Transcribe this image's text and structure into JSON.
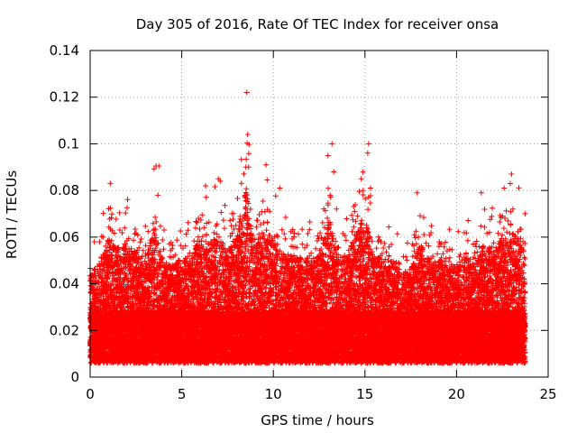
{
  "chart_data": {
    "type": "scatter",
    "title": "Day 305 of 2016, Rate Of TEC Index for receiver onsa",
    "xlabel": "GPS time / hours",
    "ylabel": "ROTI / TECUs",
    "xlim": [
      0,
      25
    ],
    "ylim": [
      0,
      0.14
    ],
    "grid": true,
    "marker": "+",
    "color": "#ff0000",
    "data_extent_hours": [
      0,
      23.75
    ],
    "x_ticks": [
      0,
      5,
      10,
      15,
      20,
      25
    ],
    "y_ticks": [
      0,
      0.02,
      0.04,
      0.06,
      0.08,
      0.1,
      0.12,
      0.14
    ],
    "x_tick_labels": [
      "0",
      "5",
      "10",
      "15",
      "20",
      "25"
    ],
    "y_tick_labels": [
      "0",
      "0.02",
      "0.04",
      "0.06",
      "0.08",
      "0.1",
      "0.12",
      "0.14"
    ],
    "envelope_max_roti": [
      [
        0,
        0.056
      ],
      [
        0.5,
        0.066
      ],
      [
        1,
        0.083
      ],
      [
        1.5,
        0.076
      ],
      [
        2,
        0.081
      ],
      [
        2.5,
        0.072
      ],
      [
        3,
        0.066
      ],
      [
        3.5,
        0.091
      ],
      [
        4,
        0.066
      ],
      [
        4.5,
        0.064
      ],
      [
        5,
        0.069
      ],
      [
        5.5,
        0.07
      ],
      [
        6,
        0.082
      ],
      [
        6.5,
        0.079
      ],
      [
        7,
        0.085
      ],
      [
        7.5,
        0.074
      ],
      [
        8,
        0.084
      ],
      [
        8.5,
        0.122
      ],
      [
        9,
        0.074
      ],
      [
        9.5,
        0.091
      ],
      [
        10,
        0.081
      ],
      [
        10.5,
        0.072
      ],
      [
        11,
        0.071
      ],
      [
        11.5,
        0.069
      ],
      [
        12,
        0.07
      ],
      [
        12.5,
        0.069
      ],
      [
        13,
        0.1
      ],
      [
        13.5,
        0.07
      ],
      [
        14,
        0.071
      ],
      [
        14.5,
        0.086
      ],
      [
        15,
        0.1
      ],
      [
        15.5,
        0.071
      ],
      [
        16,
        0.066
      ],
      [
        16.5,
        0.067
      ],
      [
        17,
        0.058
      ],
      [
        17.5,
        0.061
      ],
      [
        18,
        0.079
      ],
      [
        18.5,
        0.069
      ],
      [
        19,
        0.066
      ],
      [
        19.5,
        0.067
      ],
      [
        20,
        0.061
      ],
      [
        20.5,
        0.073
      ],
      [
        21,
        0.063
      ],
      [
        21.5,
        0.079
      ],
      [
        22,
        0.076
      ],
      [
        22.5,
        0.081
      ],
      [
        23,
        0.087
      ],
      [
        23.5,
        0.081
      ]
    ],
    "notable_points": [
      [
        8.55,
        0.122
      ],
      [
        8.6,
        0.104
      ],
      [
        13.2,
        0.1
      ],
      [
        15.2,
        0.1
      ],
      [
        15.15,
        0.096
      ],
      [
        3.6,
        0.0905
      ],
      [
        3.75,
        0.0905
      ],
      [
        9.6,
        0.091
      ],
      [
        8.5,
        0.09
      ],
      [
        8.65,
        0.09
      ],
      [
        13.3,
        0.088
      ],
      [
        23.0,
        0.087
      ],
      [
        14.8,
        0.085
      ],
      [
        14.9,
        0.08
      ],
      [
        15.3,
        0.081
      ],
      [
        1.1,
        0.083
      ],
      [
        7.0,
        0.085
      ],
      [
        7.1,
        0.084
      ],
      [
        6.3,
        0.082
      ],
      [
        17.85,
        0.079
      ],
      [
        21.35,
        0.079
      ],
      [
        22.6,
        0.081
      ],
      [
        10.35,
        0.081
      ],
      [
        3.7,
        0.078
      ],
      [
        13.1,
        0.078
      ]
    ]
  }
}
